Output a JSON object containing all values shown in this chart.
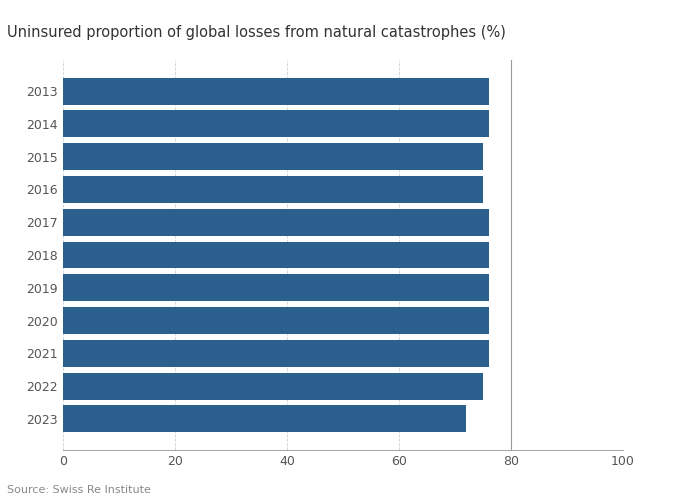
{
  "title": "Uninsured proportion of global losses from natural catastrophes (%)",
  "years": [
    "2013",
    "2014",
    "2015",
    "2016",
    "2017",
    "2018",
    "2019",
    "2020",
    "2021",
    "2022",
    "2023"
  ],
  "values": [
    76,
    76,
    75,
    75,
    76,
    76,
    76,
    76,
    76,
    75,
    72
  ],
  "bar_color": "#2b5f8e",
  "background_color": "#ffffff",
  "xlim": [
    0,
    100
  ],
  "xticks": [
    0,
    20,
    40,
    60,
    80,
    100
  ],
  "source_text": "Source: Swiss Re Institute",
  "title_fontsize": 10.5,
  "tick_fontsize": 9,
  "source_fontsize": 8,
  "vline_x": 80
}
